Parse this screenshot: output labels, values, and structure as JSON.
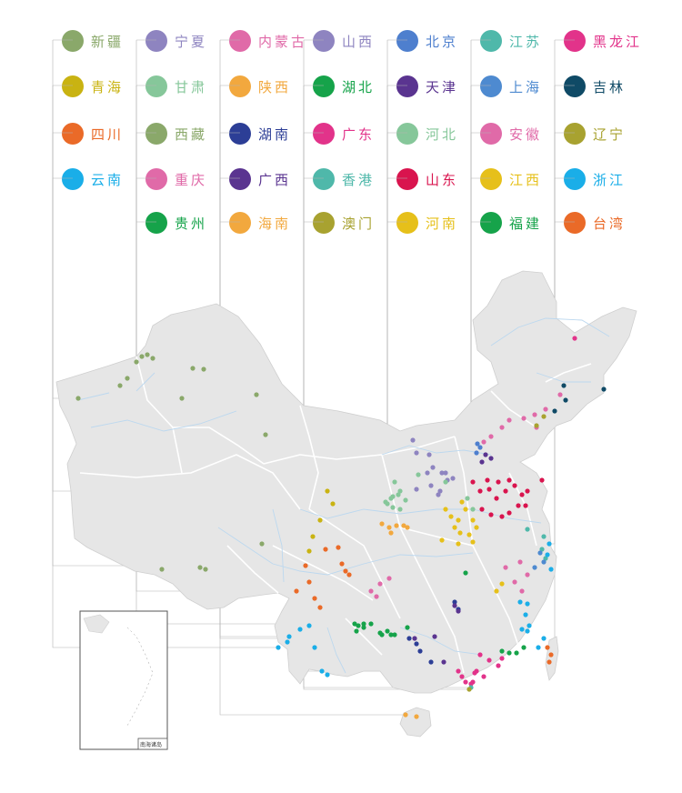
{
  "legend": [
    {
      "name": "新疆",
      "color": "#8aa86a"
    },
    {
      "name": "宁夏",
      "color": "#8e84c0"
    },
    {
      "name": "内蒙古",
      "color": "#e06aa8"
    },
    {
      "name": "山西",
      "color": "#8e84c0"
    },
    {
      "name": "北京",
      "color": "#4e7fce"
    },
    {
      "name": "江苏",
      "color": "#4fb8aa"
    },
    {
      "name": "黑龙江",
      "color": "#e2338a"
    },
    {
      "name": "青海",
      "color": "#c9b312"
    },
    {
      "name": "甘肃",
      "color": "#86c79a"
    },
    {
      "name": "陕西",
      "color": "#f2a83e"
    },
    {
      "name": "湖北",
      "color": "#16a34a"
    },
    {
      "name": "天津",
      "color": "#5a3490"
    },
    {
      "name": "上海",
      "color": "#4e8ad0"
    },
    {
      "name": "吉林",
      "color": "#0f4a66"
    },
    {
      "name": "四川",
      "color": "#ea6a28"
    },
    {
      "name": "西藏",
      "color": "#8aa86a"
    },
    {
      "name": "湖南",
      "color": "#2c3e96"
    },
    {
      "name": "广东",
      "color": "#e2338a"
    },
    {
      "name": "河北",
      "color": "#86c79a"
    },
    {
      "name": "安徽",
      "color": "#e06aa8"
    },
    {
      "name": "辽宁",
      "color": "#a8a230"
    },
    {
      "name": "云南",
      "color": "#1aaee8"
    },
    {
      "name": "重庆",
      "color": "#e06aa8"
    },
    {
      "name": "广西",
      "color": "#5a3490"
    },
    {
      "name": "香港",
      "color": "#4fb8aa"
    },
    {
      "name": "山东",
      "color": "#d9144e"
    },
    {
      "name": "江西",
      "color": "#e6c01a"
    },
    {
      "name": "浙江",
      "color": "#1aaee8"
    },
    {
      "name": "贵州",
      "color": "#16a34a"
    },
    {
      "name": "海南",
      "color": "#f2a83e"
    },
    {
      "name": "澳门",
      "color": "#a8a230"
    },
    {
      "name": "河南",
      "color": "#e6c01a"
    },
    {
      "name": "福建",
      "color": "#16a34a"
    },
    {
      "name": "台湾",
      "color": "#ea6a28"
    }
  ],
  "inset": {
    "label": "南海诸岛"
  },
  "colors": {
    "land": "#e6e6e6",
    "border": "#ffffff",
    "river": "#bcd8ef",
    "leader": "#b4b4b4"
  }
}
